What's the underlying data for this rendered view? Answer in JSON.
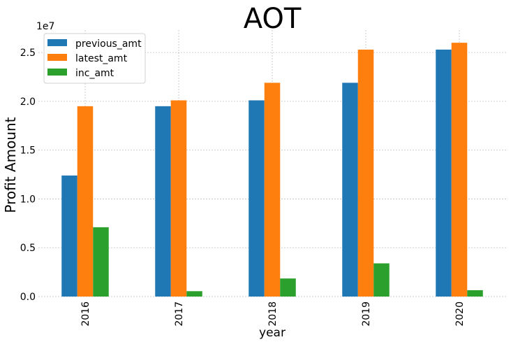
{
  "chart_data": {
    "type": "bar",
    "title": "AOT",
    "xlabel": "year",
    "ylabel": "Profit Amount",
    "y_offset_label": "1e7",
    "categories": [
      "2016",
      "2017",
      "2018",
      "2019",
      "2020"
    ],
    "series": [
      {
        "name": "previous_amt",
        "color": "#1f77b4",
        "values": [
          12400000,
          19500000,
          20100000,
          21900000,
          25300000
        ]
      },
      {
        "name": "latest_amt",
        "color": "#ff7f0e",
        "values": [
          19500000,
          20100000,
          21900000,
          25300000,
          26000000
        ]
      },
      {
        "name": "inc_amt",
        "color": "#2ca02c",
        "values": [
          7100000,
          550000,
          1850000,
          3400000,
          650000
        ]
      }
    ],
    "ylim": [
      0,
      27300000
    ],
    "yticks": [
      0,
      5000000,
      10000000,
      15000000,
      20000000,
      25000000
    ],
    "ytick_labels": [
      "0.0",
      "0.5",
      "1.0",
      "1.5",
      "2.0",
      "2.5"
    ],
    "grid": true,
    "legend_position": "top-left"
  }
}
